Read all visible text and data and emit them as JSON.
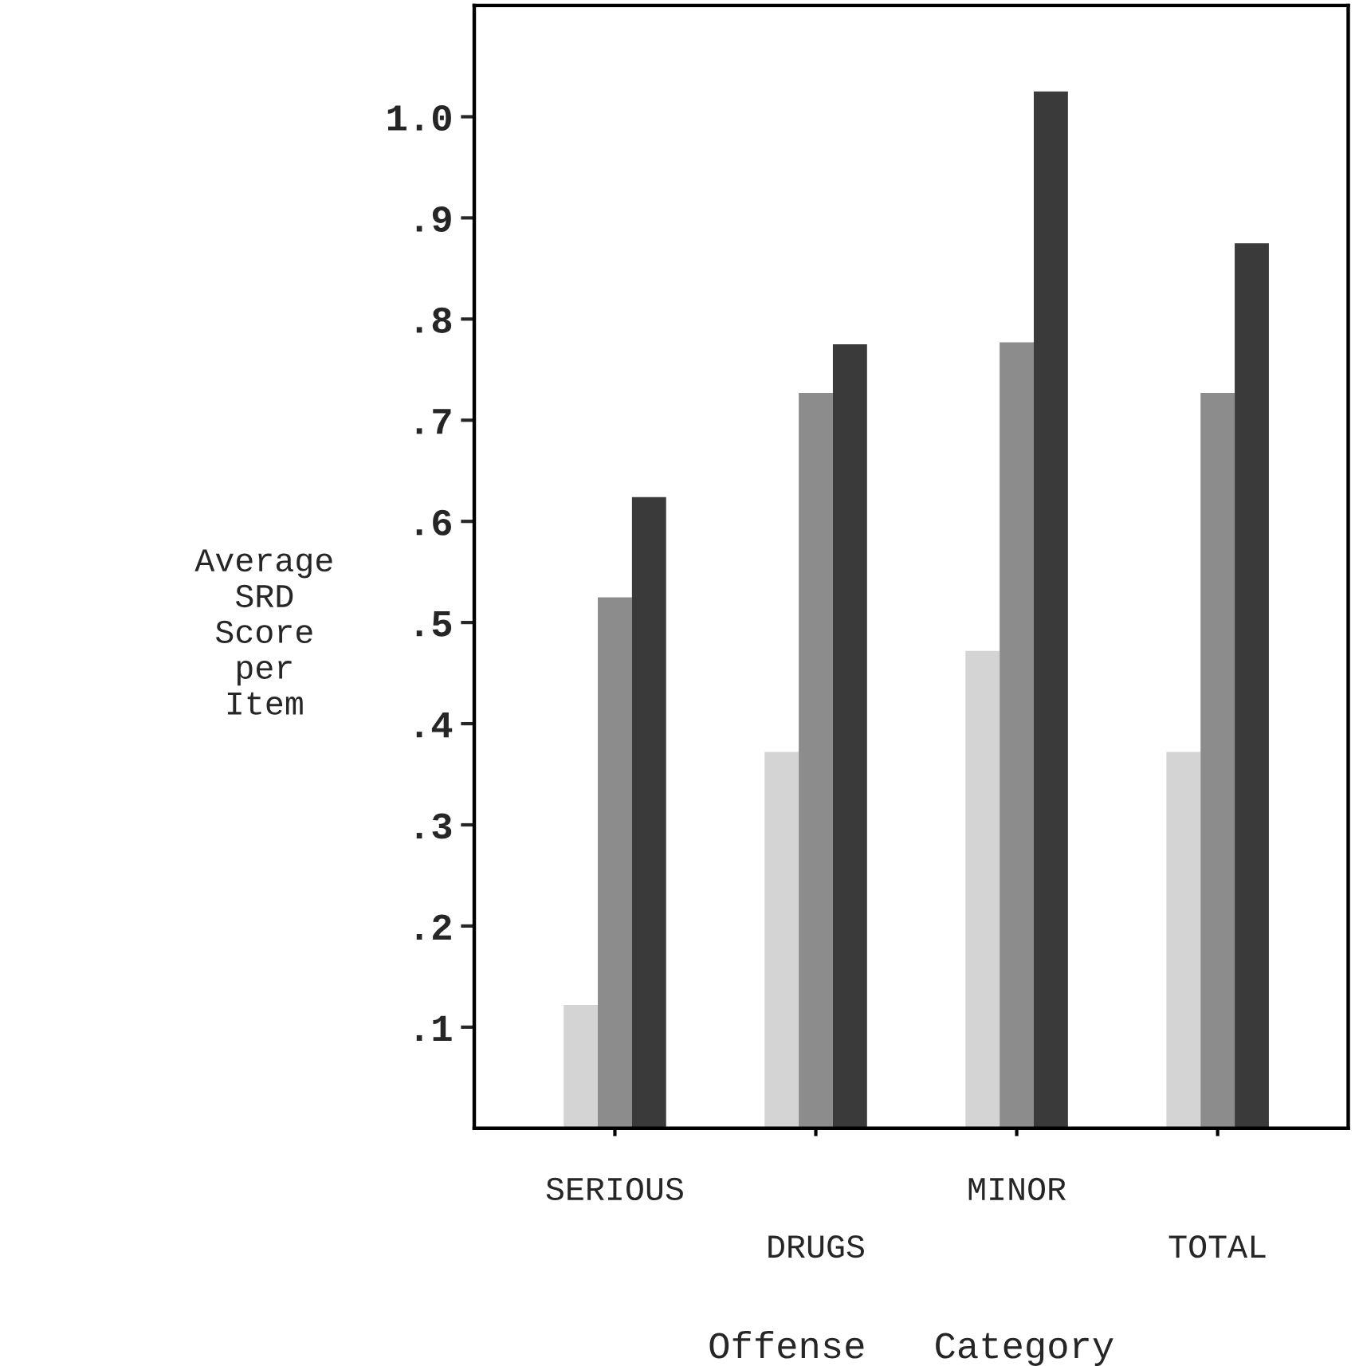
{
  "chart_data": {
    "type": "bar",
    "xlabel": "Offense   Category",
    "ylabel": "Average\nSRD\nScore\nper\nItem",
    "categories": [
      "SERIOUS",
      "DRUGS",
      "MINOR",
      "TOTAL"
    ],
    "series": [
      {
        "color": "#d4d4d4",
        "values": [
          0.122,
          0.372,
          0.472,
          0.372
        ]
      },
      {
        "color": "#8c8c8c",
        "values": [
          0.525,
          0.727,
          0.777,
          0.727
        ]
      },
      {
        "color": "#3a3a3a",
        "values": [
          0.624,
          0.775,
          1.025,
          0.875
        ]
      }
    ],
    "ylim": [
      0,
      1.11
    ],
    "yticks": [
      {
        "value": 0.1,
        "label": ".1"
      },
      {
        "value": 0.2,
        "label": ".2"
      },
      {
        "value": 0.3,
        "label": ".3"
      },
      {
        "value": 0.4,
        "label": ".4"
      },
      {
        "value": 0.5,
        "label": ".5"
      },
      {
        "value": 0.6,
        "label": ".6"
      },
      {
        "value": 0.7,
        "label": ".7"
      },
      {
        "value": 0.8,
        "label": ".8"
      },
      {
        "value": 0.9,
        "label": ".9"
      },
      {
        "value": 1.0,
        "label": "1.0"
      }
    ],
    "grid": false,
    "legend": false
  }
}
